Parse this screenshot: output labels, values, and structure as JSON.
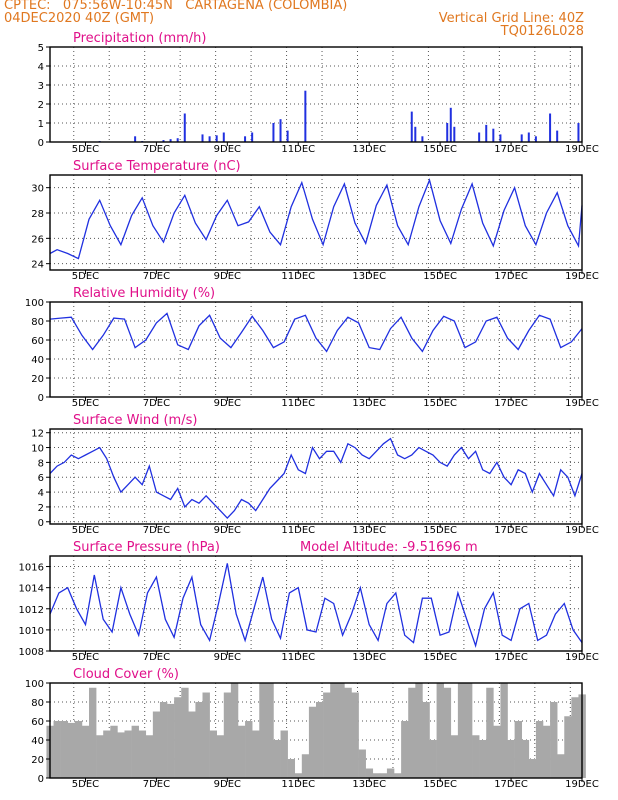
{
  "header": {
    "line1": "CPTEC:   075:56W-10:45N   CARTAGENA (COLOMBIA)",
    "line2": "04DEC2020 40Z (GMT)",
    "grid_note": "Vertical Grid Line: 40Z",
    "code": "TQ0126L028",
    "color": "#e07820"
  },
  "colors": {
    "title": "#e0108a",
    "line": "#2030e0",
    "bar": "#2030e0",
    "cloud": "#a8a8a8",
    "grid": "#555555"
  },
  "x_ticks": [
    "5DEC",
    "7DEC",
    "9DEC",
    "11DEC",
    "13DEC",
    "15DEC",
    "17DEC",
    "19DEC"
  ],
  "chart_data": [
    {
      "type": "bar",
      "title": "Precipitation (mm/h)",
      "ylim": [
        0,
        5
      ],
      "yticks": [
        0,
        1,
        2,
        3,
        4,
        5
      ],
      "x_unit": "day",
      "x_range": [
        4.0,
        19.0
      ],
      "grid": true,
      "spikes": [
        {
          "x": 5.4,
          "y": 0.05
        },
        {
          "x": 6.4,
          "y": 0.3
        },
        {
          "x": 6.6,
          "y": 0.05
        },
        {
          "x": 7.2,
          "y": 0.1
        },
        {
          "x": 7.4,
          "y": 0.15
        },
        {
          "x": 7.6,
          "y": 0.2
        },
        {
          "x": 7.8,
          "y": 1.5
        },
        {
          "x": 8.3,
          "y": 0.4
        },
        {
          "x": 8.5,
          "y": 0.3
        },
        {
          "x": 8.7,
          "y": 0.35
        },
        {
          "x": 8.9,
          "y": 0.5
        },
        {
          "x": 9.5,
          "y": 0.3
        },
        {
          "x": 9.7,
          "y": 0.5
        },
        {
          "x": 10.3,
          "y": 1.0
        },
        {
          "x": 10.5,
          "y": 1.2
        },
        {
          "x": 10.7,
          "y": 0.6
        },
        {
          "x": 11.2,
          "y": 2.7
        },
        {
          "x": 14.2,
          "y": 1.6
        },
        {
          "x": 14.3,
          "y": 0.8
        },
        {
          "x": 14.5,
          "y": 0.3
        },
        {
          "x": 15.2,
          "y": 1.0
        },
        {
          "x": 15.3,
          "y": 1.8
        },
        {
          "x": 15.4,
          "y": 0.8
        },
        {
          "x": 16.1,
          "y": 0.5
        },
        {
          "x": 16.3,
          "y": 0.9
        },
        {
          "x": 16.5,
          "y": 0.7
        },
        {
          "x": 16.7,
          "y": 0.4
        },
        {
          "x": 17.3,
          "y": 0.4
        },
        {
          "x": 17.5,
          "y": 0.5
        },
        {
          "x": 17.7,
          "y": 0.3
        },
        {
          "x": 18.1,
          "y": 1.5
        },
        {
          "x": 18.3,
          "y": 0.6
        },
        {
          "x": 18.9,
          "y": 1.0
        }
      ]
    },
    {
      "type": "line",
      "title": "Surface Temperature (nC)",
      "ylim": [
        23.5,
        31
      ],
      "yticks": [
        24,
        26,
        28,
        30
      ],
      "x_range": [
        4.0,
        19.0
      ],
      "grid": true,
      "x": [
        4.0,
        4.2,
        4.5,
        4.8,
        5.1,
        5.4,
        5.7,
        6.0,
        6.3,
        6.6,
        6.9,
        7.2,
        7.5,
        7.8,
        8.1,
        8.4,
        8.7,
        9.0,
        9.3,
        9.6,
        9.9,
        10.2,
        10.5,
        10.8,
        11.1,
        11.4,
        11.7,
        12.0,
        12.3,
        12.6,
        12.9,
        13.2,
        13.5,
        13.8,
        14.1,
        14.4,
        14.7,
        15.0,
        15.3,
        15.6,
        15.9,
        16.2,
        16.5,
        16.8,
        17.1,
        17.4,
        17.7,
        18.0,
        18.3,
        18.6,
        18.9,
        19.0
      ],
      "y": [
        24.8,
        25.1,
        24.8,
        24.4,
        27.5,
        29.0,
        27.0,
        25.5,
        27.8,
        29.2,
        27.0,
        25.7,
        28.0,
        29.4,
        27.2,
        25.9,
        27.8,
        29.0,
        27.0,
        27.3,
        28.5,
        26.5,
        25.5,
        28.5,
        30.4,
        27.5,
        25.5,
        28.5,
        30.3,
        27.2,
        25.6,
        28.6,
        30.2,
        27.0,
        25.5,
        28.5,
        30.6,
        27.4,
        25.6,
        28.3,
        30.3,
        27.2,
        25.4,
        28.2,
        30.0,
        27.0,
        25.5,
        28.0,
        29.6,
        27.0,
        25.4,
        28.6
      ]
    },
    {
      "type": "line",
      "title": "Relative Humidity (%)",
      "ylim": [
        0,
        100
      ],
      "yticks": [
        0,
        20,
        40,
        60,
        80,
        100
      ],
      "x_range": [
        4.0,
        19.0
      ],
      "grid": true,
      "x": [
        4.0,
        4.3,
        4.6,
        4.9,
        5.2,
        5.5,
        5.8,
        6.1,
        6.4,
        6.7,
        7.0,
        7.3,
        7.6,
        7.9,
        8.2,
        8.5,
        8.8,
        9.1,
        9.4,
        9.7,
        10.0,
        10.3,
        10.6,
        10.9,
        11.2,
        11.5,
        11.8,
        12.1,
        12.4,
        12.7,
        13.0,
        13.3,
        13.6,
        13.9,
        14.2,
        14.5,
        14.8,
        15.1,
        15.4,
        15.7,
        16.0,
        16.3,
        16.6,
        16.9,
        17.2,
        17.5,
        17.8,
        18.1,
        18.4,
        18.7,
        19.0
      ],
      "y": [
        82,
        83,
        84,
        65,
        50,
        65,
        83,
        82,
        52,
        60,
        78,
        88,
        55,
        50,
        75,
        86,
        62,
        52,
        68,
        85,
        70,
        52,
        58,
        82,
        86,
        62,
        48,
        70,
        84,
        78,
        52,
        50,
        72,
        84,
        62,
        48,
        70,
        85,
        80,
        52,
        58,
        80,
        84,
        62,
        50,
        70,
        86,
        82,
        52,
        58,
        72
      ]
    },
    {
      "type": "line",
      "title": "Surface Wind (m/s)",
      "ylim": [
        -0.3,
        12.5
      ],
      "yticks": [
        0,
        2,
        4,
        6,
        8,
        10,
        12
      ],
      "x_range": [
        4.0,
        19.0
      ],
      "grid": true,
      "x": [
        4.0,
        4.2,
        4.4,
        4.6,
        4.8,
        5.0,
        5.2,
        5.4,
        5.6,
        5.8,
        6.0,
        6.2,
        6.4,
        6.6,
        6.8,
        7.0,
        7.2,
        7.4,
        7.6,
        7.8,
        8.0,
        8.2,
        8.4,
        8.6,
        8.8,
        9.0,
        9.2,
        9.4,
        9.6,
        9.8,
        10.0,
        10.2,
        10.4,
        10.6,
        10.8,
        11.0,
        11.2,
        11.4,
        11.6,
        11.8,
        12.0,
        12.2,
        12.4,
        12.6,
        12.8,
        13.0,
        13.2,
        13.4,
        13.6,
        13.8,
        14.0,
        14.2,
        14.4,
        14.6,
        14.8,
        15.0,
        15.2,
        15.4,
        15.6,
        15.8,
        16.0,
        16.2,
        16.4,
        16.6,
        16.8,
        17.0,
        17.2,
        17.4,
        17.6,
        17.8,
        18.0,
        18.2,
        18.4,
        18.6,
        18.8,
        19.0
      ],
      "y": [
        6.5,
        7.5,
        8.0,
        9.0,
        8.5,
        9.0,
        9.5,
        10.0,
        8.5,
        6.0,
        4.0,
        5.0,
        6.0,
        5.0,
        7.5,
        4.0,
        3.5,
        3.0,
        4.5,
        2.0,
        3.0,
        2.5,
        3.5,
        2.5,
        1.5,
        0.5,
        1.5,
        3.0,
        2.5,
        1.5,
        3.0,
        4.5,
        5.5,
        6.5,
        9.0,
        7.0,
        6.5,
        10.0,
        8.5,
        9.5,
        9.5,
        8.0,
        10.5,
        10.0,
        9.0,
        8.5,
        9.5,
        10.5,
        11.2,
        9.0,
        8.5,
        9.0,
        10.0,
        9.5,
        9.0,
        8.0,
        7.5,
        9.0,
        10.0,
        8.5,
        9.5,
        7.0,
        6.5,
        8.0,
        6.0,
        5.0,
        7.0,
        6.5,
        4.0,
        6.5,
        5.0,
        3.5,
        7.0,
        6.0,
        3.5,
        6.5
      ]
    },
    {
      "type": "line",
      "title": "Surface Pressure (hPa)",
      "subtitle": "Model Altitude: -9.51696 m",
      "ylim": [
        1008,
        1017
      ],
      "yticks": [
        1008,
        1010,
        1012,
        1014,
        1016
      ],
      "x_range": [
        4.0,
        19.0
      ],
      "grid": true,
      "x": [
        4.0,
        4.25,
        4.5,
        4.75,
        5.0,
        5.25,
        5.5,
        5.75,
        6.0,
        6.25,
        6.5,
        6.75,
        7.0,
        7.25,
        7.5,
        7.75,
        8.0,
        8.25,
        8.5,
        8.75,
        9.0,
        9.25,
        9.5,
        9.75,
        10.0,
        10.25,
        10.5,
        10.75,
        11.0,
        11.25,
        11.5,
        11.75,
        12.0,
        12.25,
        12.5,
        12.75,
        13.0,
        13.25,
        13.5,
        13.75,
        14.0,
        14.25,
        14.5,
        14.75,
        15.0,
        15.25,
        15.5,
        15.75,
        16.0,
        16.25,
        16.5,
        16.75,
        17.0,
        17.25,
        17.5,
        17.75,
        18.0,
        18.25,
        18.5,
        18.75,
        19.0
      ],
      "y": [
        1011.5,
        1013.5,
        1014.0,
        1012.0,
        1010.5,
        1015.2,
        1011.0,
        1009.8,
        1014.0,
        1011.5,
        1009.5,
        1013.5,
        1015.0,
        1011.0,
        1009.3,
        1013.0,
        1015.0,
        1010.5,
        1009.0,
        1012.5,
        1016.3,
        1011.5,
        1009.0,
        1012.0,
        1015.0,
        1011.0,
        1009.2,
        1013.5,
        1014.0,
        1010.0,
        1009.8,
        1013.0,
        1012.5,
        1009.5,
        1011.5,
        1014.0,
        1010.5,
        1009.0,
        1012.5,
        1013.5,
        1009.5,
        1008.8,
        1013.0,
        1013.0,
        1009.5,
        1009.8,
        1013.5,
        1011.0,
        1008.5,
        1012.0,
        1013.5,
        1009.5,
        1009.0,
        1012.0,
        1012.5,
        1009.0,
        1009.5,
        1011.5,
        1012.5,
        1010.0,
        1008.8
      ]
    },
    {
      "type": "area",
      "title": "Cloud Cover (%)",
      "ylim": [
        0,
        100
      ],
      "yticks": [
        0,
        20,
        40,
        60,
        80,
        100
      ],
      "x_range": [
        4.0,
        19.0
      ],
      "grid": true,
      "x": [
        4.0,
        4.2,
        4.4,
        4.6,
        4.8,
        5.0,
        5.2,
        5.4,
        5.6,
        5.8,
        6.0,
        6.2,
        6.4,
        6.6,
        6.8,
        7.0,
        7.2,
        7.4,
        7.6,
        7.8,
        8.0,
        8.2,
        8.4,
        8.6,
        8.8,
        9.0,
        9.2,
        9.4,
        9.6,
        9.8,
        10.0,
        10.2,
        10.4,
        10.6,
        10.8,
        11.0,
        11.2,
        11.4,
        11.6,
        11.8,
        12.0,
        12.2,
        12.4,
        12.6,
        12.8,
        13.0,
        13.2,
        13.4,
        13.6,
        13.8,
        14.0,
        14.2,
        14.4,
        14.6,
        14.8,
        15.0,
        15.2,
        15.4,
        15.6,
        15.8,
        16.0,
        16.2,
        16.4,
        16.6,
        16.8,
        17.0,
        17.2,
        17.4,
        17.6,
        17.8,
        18.0,
        18.2,
        18.4,
        18.6,
        18.8,
        19.0
      ],
      "y": [
        55,
        60,
        60,
        58,
        60,
        55,
        95,
        45,
        50,
        55,
        48,
        50,
        55,
        50,
        45,
        70,
        80,
        78,
        85,
        95,
        70,
        80,
        90,
        50,
        45,
        90,
        100,
        55,
        60,
        50,
        100,
        100,
        40,
        50,
        20,
        5,
        25,
        75,
        80,
        90,
        100,
        100,
        95,
        90,
        30,
        10,
        5,
        5,
        10,
        5,
        60,
        95,
        100,
        80,
        40,
        100,
        95,
        45,
        100,
        100,
        45,
        40,
        95,
        55,
        100,
        40,
        60,
        40,
        20,
        60,
        55,
        80,
        25,
        65,
        85,
        88
      ]
    }
  ]
}
